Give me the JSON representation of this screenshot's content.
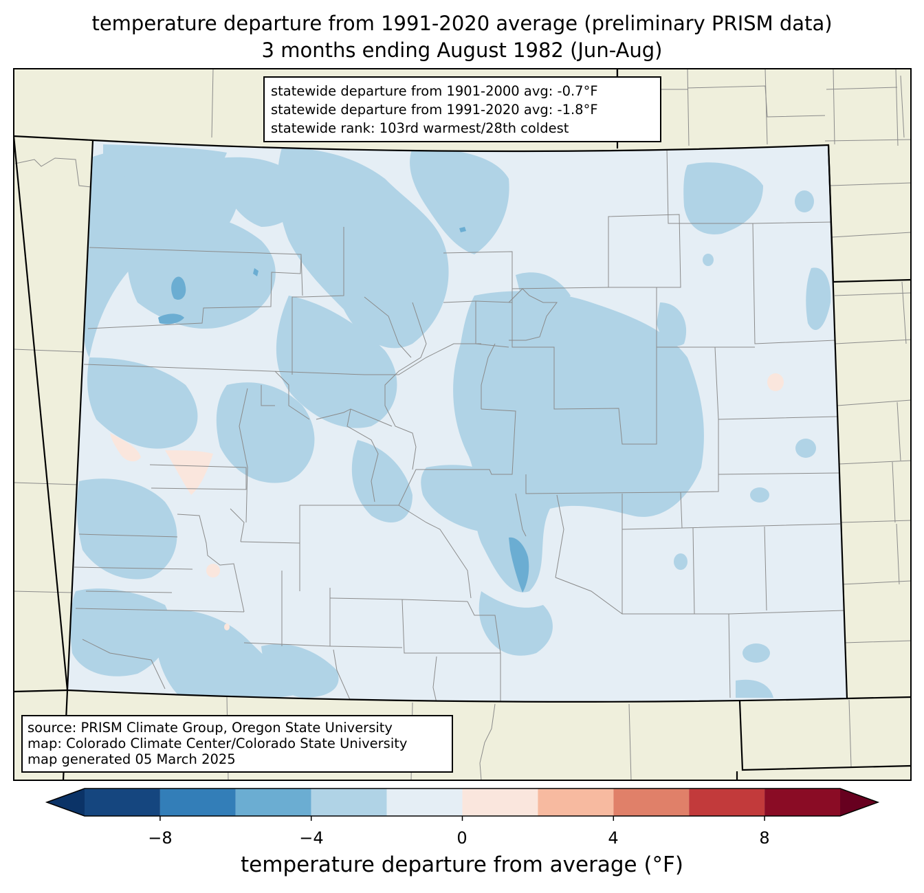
{
  "title": {
    "line1": "temperature departure from 1991-2020 average (preliminary PRISM data)",
    "line2": "3 months ending August 1982 (Jun-Aug)"
  },
  "stats": {
    "line1": "statewide departure from 1901-2000 avg: -0.7°F",
    "line2": "statewide departure from 1991-2020 avg: -1.8°F",
    "line3": "statewide rank: 103rd warmest/28th coldest"
  },
  "source": {
    "line1": "source: PRISM Climate Group, Oregon State University",
    "line2": "map: Colorado Climate Center/Colorado State University",
    "line3": "map generated 05 March 2025"
  },
  "colorbar": {
    "label": "temperature departure from average (°F)",
    "ticks": [
      "−8",
      "−4",
      "0",
      "4",
      "8"
    ],
    "bins": [
      -10,
      -8,
      -6,
      -4,
      -2,
      0,
      2,
      4,
      6,
      8,
      10
    ],
    "colors": [
      "#0b3367",
      "#15467f",
      "#337eb8",
      "#6badd2",
      "#b0d3e6",
      "#e5eef5",
      "#fae6dd",
      "#f7baa0",
      "#e08069",
      "#c23a3b",
      "#8a0c25",
      "#67001f"
    ]
  },
  "map_colors": {
    "background": "#efefdc",
    "neutral": "#e5eef5",
    "light_cool": "#b0d3e6",
    "mid_cool": "#6badd2",
    "light_warm": "#fae6dd",
    "county_line": "#8a8a8a",
    "state_line": "#000000"
  }
}
